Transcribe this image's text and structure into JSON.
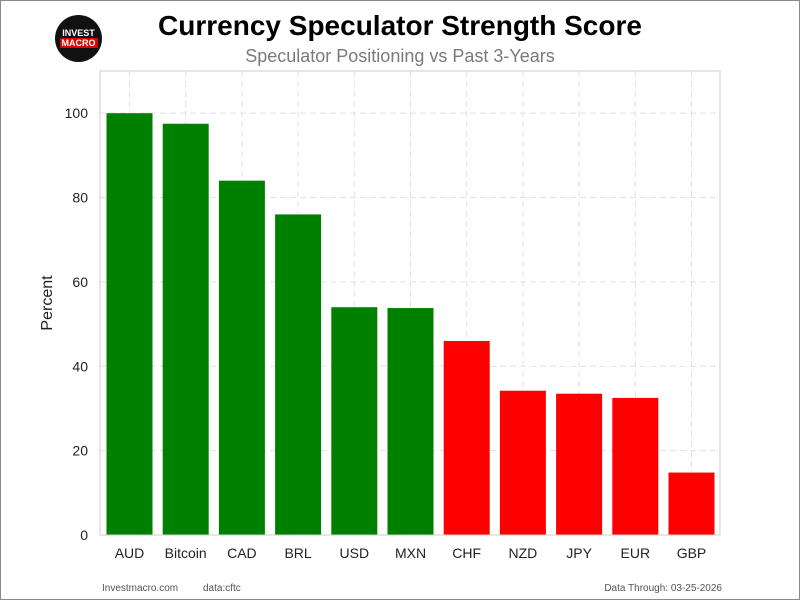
{
  "logo": {
    "line1": "INVEST",
    "line2": "MACRO"
  },
  "title": "Currency Speculator Strength Score",
  "subtitle": "Speculator Positioning vs Past 3-Years",
  "footer": {
    "site": "Investmacro.com",
    "source": "data:cftc",
    "through": "Data Through: 03-25-2026"
  },
  "chart_data": {
    "type": "bar",
    "title": "Currency Speculator Strength Score",
    "subtitle": "Speculator Positioning vs Past 3-Years",
    "xlabel": "",
    "ylabel": "Percent",
    "categories": [
      "AUD",
      "Bitcoin",
      "CAD",
      "BRL",
      "USD",
      "MXN",
      "CHF",
      "NZD",
      "JPY",
      "EUR",
      "GBP"
    ],
    "values": [
      100,
      97.5,
      84,
      76,
      54,
      53.8,
      46,
      34.2,
      33.5,
      32.5,
      14.8
    ],
    "colors": [
      "#008000",
      "#008000",
      "#008000",
      "#008000",
      "#008000",
      "#008000",
      "#ff0000",
      "#ff0000",
      "#ff0000",
      "#ff0000",
      "#ff0000"
    ],
    "ylim": [
      0,
      110
    ],
    "yticks": [
      0,
      20,
      40,
      60,
      80,
      100
    ],
    "grid": true
  }
}
